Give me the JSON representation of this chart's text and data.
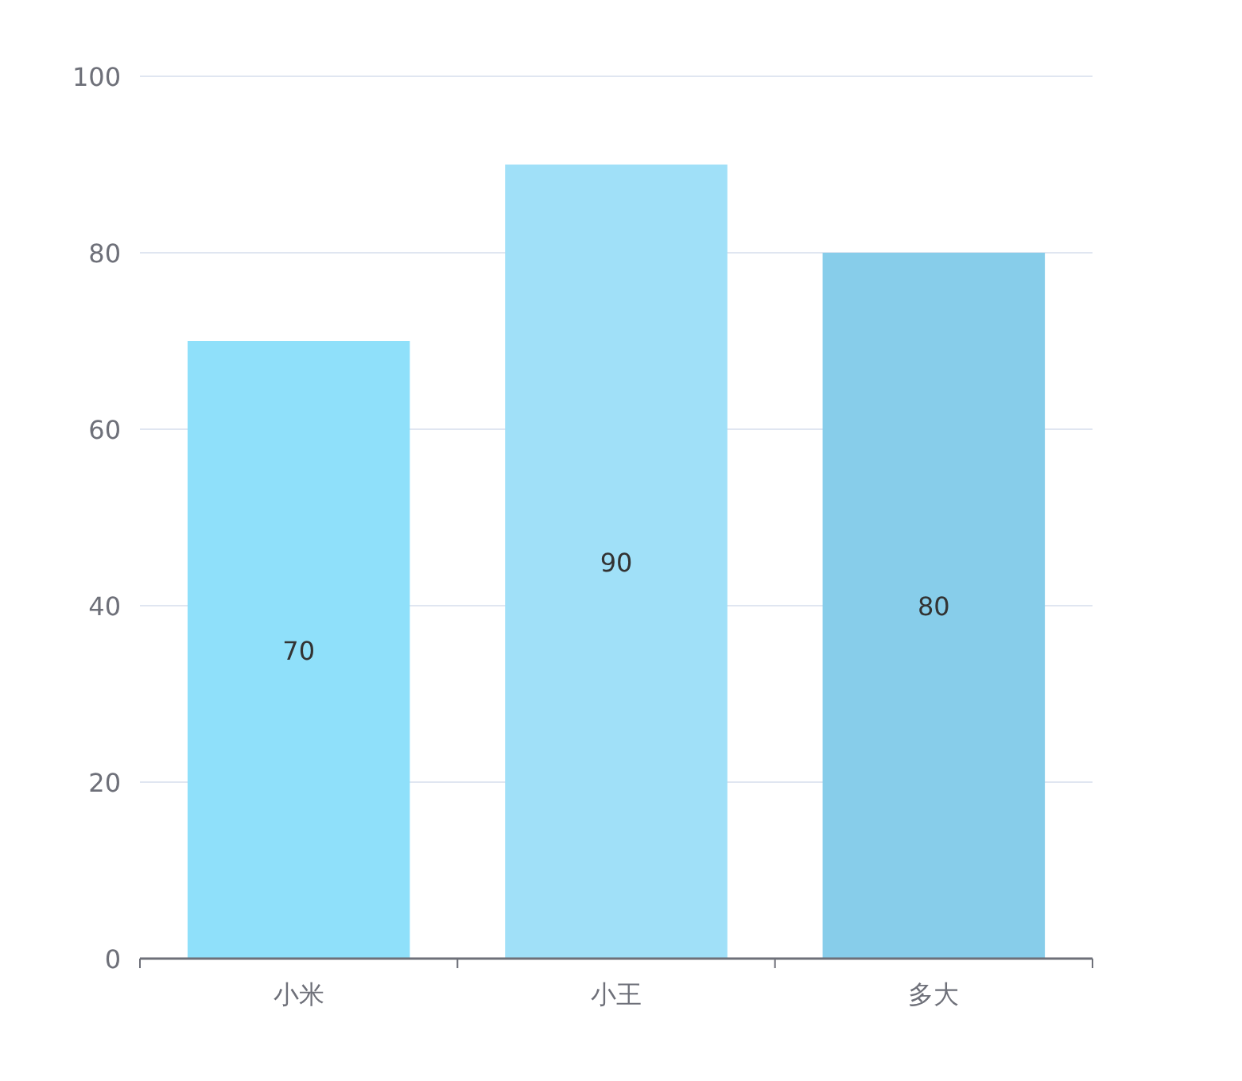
{
  "chart_data": {
    "type": "bar",
    "categories": [
      "小米",
      "小王",
      "多大"
    ],
    "values": [
      70,
      90,
      80
    ],
    "colors": [
      "#8fe0fa",
      "#a0e0f8",
      "#87cdea"
    ],
    "ylim": [
      0,
      100
    ],
    "yticks": [
      0,
      20,
      40,
      60,
      80,
      100
    ],
    "grid": "y",
    "data_labels": true
  }
}
